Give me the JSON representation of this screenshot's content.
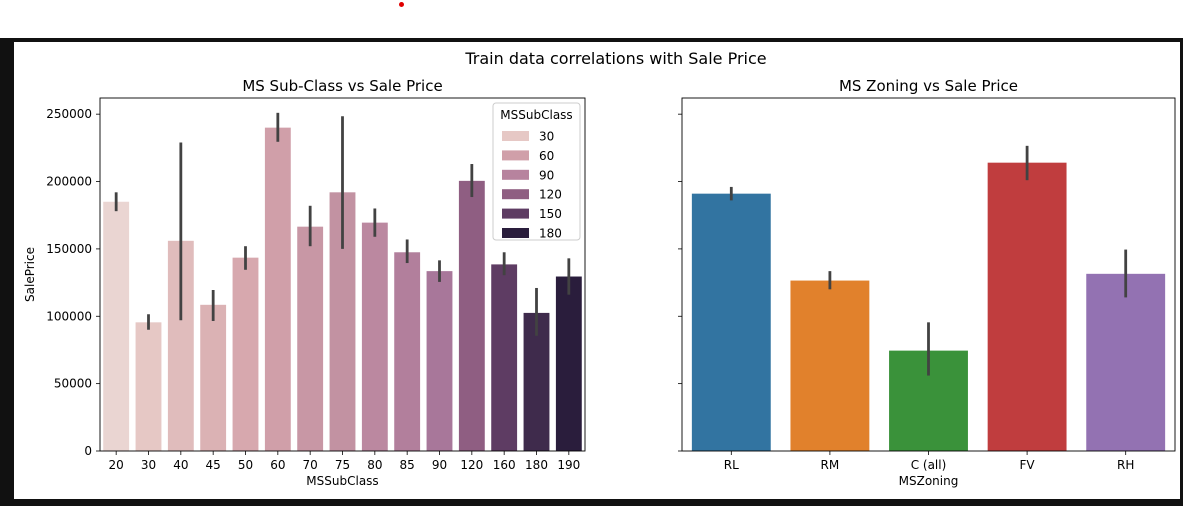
{
  "figure": {
    "suptitle": "Train data correlations with Sale Price"
  },
  "chart_data": [
    {
      "type": "bar",
      "title": "MS Sub-Class vs Sale Price",
      "xlabel": "MSSubClass",
      "ylabel": "SalePrice",
      "ylim": [
        0,
        262000
      ],
      "yticks": [
        0,
        50000,
        100000,
        150000,
        200000,
        250000
      ],
      "categories": [
        "20",
        "30",
        "40",
        "45",
        "50",
        "60",
        "70",
        "75",
        "80",
        "85",
        "90",
        "120",
        "160",
        "180",
        "190"
      ],
      "values": [
        185000,
        95500,
        156000,
        108500,
        143500,
        240000,
        166500,
        192000,
        169500,
        147500,
        133500,
        200500,
        138500,
        102500,
        129500
      ],
      "error_low": [
        178000,
        90000,
        97000,
        96500,
        134500,
        229500,
        152000,
        150000,
        159000,
        139500,
        125500,
        188500,
        130500,
        85500,
        116000
      ],
      "error_high": [
        192000,
        101500,
        229000,
        119500,
        152000,
        251000,
        182000,
        248500,
        180000,
        157000,
        141500,
        213000,
        147500,
        121000,
        143000
      ],
      "colors": [
        "#ead5d2",
        "#e6c8c5",
        "#e0bcbc",
        "#dbb2b4",
        "#d7a8ae",
        "#d09fa9",
        "#c897a5",
        "#c292a2",
        "#bb88a0",
        "#b27f9c",
        "#a8779a",
        "#8f5e82",
        "#5e3c63",
        "#3f2b4c",
        "#2a1d3c"
      ],
      "legend": {
        "title": "MSSubClass",
        "position": "upper right",
        "entries": [
          {
            "label": "30",
            "color": "#e6c8c5"
          },
          {
            "label": "60",
            "color": "#d09fa9"
          },
          {
            "label": "90",
            "color": "#b7839e"
          },
          {
            "label": "120",
            "color": "#8f5e82"
          },
          {
            "label": "150",
            "color": "#5e3c63"
          },
          {
            "label": "180",
            "color": "#2a1d3c"
          }
        ]
      }
    },
    {
      "type": "bar",
      "title": "MS Zoning vs Sale Price",
      "xlabel": "MSZoning",
      "ylabel": "",
      "ylim": [
        0,
        262000
      ],
      "shared_y": true,
      "categories": [
        "RL",
        "RM",
        "C (all)",
        "FV",
        "RH"
      ],
      "values": [
        191000,
        126500,
        74500,
        214000,
        131500
      ],
      "error_low": [
        186000,
        120000,
        56000,
        201000,
        114000
      ],
      "error_high": [
        196000,
        133500,
        95500,
        226500,
        149500
      ],
      "colors": [
        "#3274a1",
        "#e1812c",
        "#3a923a",
        "#c03d3e",
        "#9372b2"
      ]
    }
  ]
}
